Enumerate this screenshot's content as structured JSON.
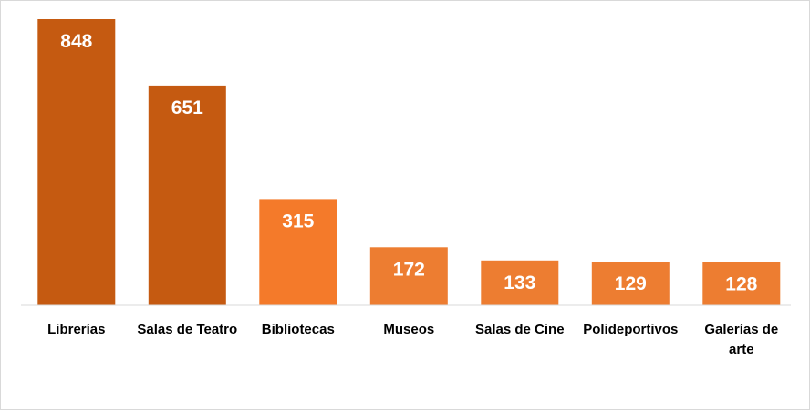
{
  "chart_data": {
    "type": "bar",
    "title": "",
    "xlabel": "",
    "ylabel": "",
    "categories": [
      "Librerías",
      "Salas de Teatro",
      "Bibliotecas",
      "Museos",
      "Salas de Cine",
      "Polideportivos",
      "Galerías de arte"
    ],
    "values": [
      848,
      651,
      315,
      172,
      133,
      129,
      128
    ],
    "ylim": [
      0,
      848
    ],
    "grid": false,
    "legend": "none",
    "bar_colors": [
      "#c55a11",
      "#c55a11",
      "#f47a2a",
      "#ed7d31",
      "#ed7d31",
      "#ed7d31",
      "#ed7d31"
    ],
    "data_labels": true
  }
}
